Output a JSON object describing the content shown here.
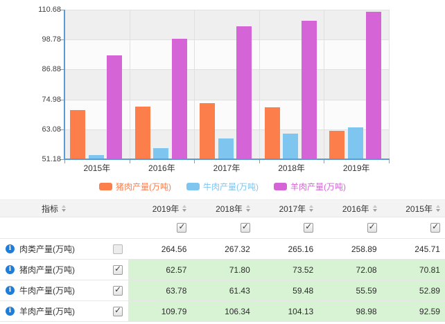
{
  "colors": {
    "axis": "#5B9BD5",
    "band_gray": "#EFEFEF",
    "band_light": "#FBFBFB",
    "grid": "#E0E0E0",
    "tick": "#999999",
    "row_highlight": "#D8F2D4",
    "header_bg": "#F3F3F3",
    "info_icon": "#1E7ED7"
  },
  "icons": {
    "info": "i"
  },
  "chart_data": {
    "type": "bar",
    "categories": [
      "2015年",
      "2016年",
      "2017年",
      "2018年",
      "2019年"
    ],
    "series": [
      {
        "key": "pork",
        "name": "猪肉产量(万吨)",
        "color": "#FB7E4B",
        "values": [
          70.81,
          72.08,
          73.52,
          71.8,
          62.57
        ]
      },
      {
        "key": "beef",
        "name": "牛肉产量(万吨)",
        "color": "#7EC5F0",
        "values": [
          52.89,
          55.59,
          59.48,
          61.43,
          63.78
        ]
      },
      {
        "key": "mutton",
        "name": "羊肉产量(万吨)",
        "color": "#D565D6",
        "values": [
          92.59,
          98.98,
          104.13,
          106.34,
          109.79
        ]
      }
    ],
    "title": "",
    "xlabel": "",
    "ylabel": "",
    "ylim": [
      51.18,
      110.68
    ],
    "yticks": [
      51.18,
      63.08,
      74.98,
      86.88,
      98.78,
      110.68
    ],
    "legend_position": "bottom",
    "grid": "banded-horizontal"
  },
  "table": {
    "header": {
      "label": "指标",
      "years": [
        "2019年",
        "2018年",
        "2017年",
        "2016年",
        "2015年"
      ]
    },
    "year_checkboxes": [
      true,
      true,
      true,
      true,
      true
    ],
    "rows": [
      {
        "label": "肉类产量(万吨)",
        "checked": false,
        "highlight": false,
        "values": [
          "264.56",
          "267.32",
          "265.16",
          "258.89",
          "245.71"
        ]
      },
      {
        "label": "猪肉产量(万吨)",
        "checked": true,
        "highlight": true,
        "values": [
          "62.57",
          "71.80",
          "73.52",
          "72.08",
          "70.81"
        ]
      },
      {
        "label": "牛肉产量(万吨)",
        "checked": true,
        "highlight": true,
        "values": [
          "63.78",
          "61.43",
          "59.48",
          "55.59",
          "52.89"
        ]
      },
      {
        "label": "羊肉产量(万吨)",
        "checked": true,
        "highlight": true,
        "values": [
          "109.79",
          "106.34",
          "104.13",
          "98.98",
          "92.59"
        ]
      }
    ]
  }
}
